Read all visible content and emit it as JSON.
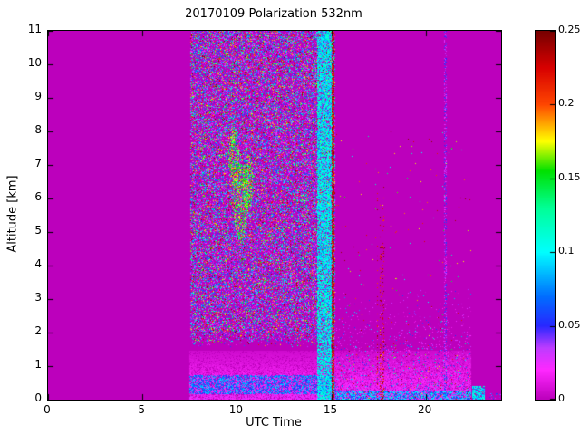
{
  "chart_data": {
    "type": "heatmap",
    "title": "20170109 Polarization 532nm",
    "xlabel": "UTC Time",
    "ylabel": "Altitude [km]",
    "x_range": [
      0,
      24
    ],
    "y_range": [
      0,
      11
    ],
    "x_ticks": [
      {
        "v": 0,
        "label": "0"
      },
      {
        "v": 5,
        "label": "5"
      },
      {
        "v": 10,
        "label": "10"
      },
      {
        "v": 15,
        "label": "15"
      },
      {
        "v": 20,
        "label": "20"
      }
    ],
    "y_ticks": [
      {
        "v": 0,
        "label": "0"
      },
      {
        "v": 1,
        "label": "1"
      },
      {
        "v": 2,
        "label": "2"
      },
      {
        "v": 3,
        "label": "3"
      },
      {
        "v": 4,
        "label": "4"
      },
      {
        "v": 5,
        "label": "5"
      },
      {
        "v": 6,
        "label": "6"
      },
      {
        "v": 7,
        "label": "7"
      },
      {
        "v": 8,
        "label": "8"
      },
      {
        "v": 9,
        "label": "9"
      },
      {
        "v": 10,
        "label": "10"
      },
      {
        "v": 11,
        "label": "11"
      }
    ],
    "colorbar": {
      "range": [
        0,
        0.25
      ],
      "ticks": [
        {
          "v": 0,
          "label": "0"
        },
        {
          "v": 0.05,
          "label": "0.05"
        },
        {
          "v": 0.1,
          "label": "0.1"
        },
        {
          "v": 0.15,
          "label": "0.15"
        },
        {
          "v": 0.2,
          "label": "0.2"
        },
        {
          "v": 0.25,
          "label": "0.25"
        }
      ]
    },
    "colormap_stops": [
      {
        "v": 0.0,
        "c": [
          188,
          0,
          188
        ]
      },
      {
        "v": 0.02,
        "c": [
          255,
          40,
          255
        ]
      },
      {
        "v": 0.035,
        "c": [
          190,
          60,
          255
        ]
      },
      {
        "v": 0.05,
        "c": [
          40,
          40,
          255
        ]
      },
      {
        "v": 0.07,
        "c": [
          0,
          110,
          255
        ]
      },
      {
        "v": 0.1,
        "c": [
          0,
          255,
          255
        ]
      },
      {
        "v": 0.13,
        "c": [
          0,
          255,
          150
        ]
      },
      {
        "v": 0.155,
        "c": [
          0,
          225,
          0
        ]
      },
      {
        "v": 0.175,
        "c": [
          255,
          255,
          0
        ]
      },
      {
        "v": 0.2,
        "c": [
          255,
          70,
          0
        ]
      },
      {
        "v": 0.225,
        "c": [
          215,
          0,
          0
        ]
      },
      {
        "v": 0.25,
        "c": [
          118,
          0,
          0
        ]
      }
    ],
    "background_value": 0,
    "regions": {
      "noise_block": {
        "x": [
          7.55,
          15.2
        ],
        "y_min": 1.55,
        "density": 0.5
      },
      "clusters": [
        {
          "x": 10.2,
          "y": 5.9,
          "r": 0.4
        },
        {
          "x": 9.85,
          "y": 7.2,
          "r": 0.3
        },
        {
          "x": 10.6,
          "y": 6.5,
          "r": 0.28
        }
      ],
      "cyan_band": {
        "x": [
          14.25,
          15.02
        ],
        "density": 0.75,
        "value": [
          0.075,
          0.125
        ]
      },
      "dark_stripe": {
        "x": [
          15.02,
          15.19
        ],
        "density": 0.7,
        "value": [
          0.205,
          0.25
        ]
      },
      "low_sparse": {
        "x": [
          15.19,
          22.4
        ],
        "y_max": 3.3
      },
      "dark_streaks": {
        "centers": [
          17.45,
          17.62,
          17.78
        ],
        "half_width": 0.045,
        "y_max": 7,
        "value": [
          0.2,
          0.25
        ]
      },
      "boundary_layer": {
        "x": [
          7.5,
          22.4
        ],
        "y_max": 1.45
      },
      "blue_line": {
        "x_split": 15.2,
        "y_center_left": 0.45,
        "y_center_right": 0.14
      },
      "faint_line": {
        "x": [
          21.0,
          21.12
        ],
        "density": 0.4
      },
      "cyan_patch": {
        "x": [
          22.45,
          23.15
        ],
        "y_max": 0.4,
        "value": [
          0.07,
          0.12
        ]
      }
    }
  }
}
